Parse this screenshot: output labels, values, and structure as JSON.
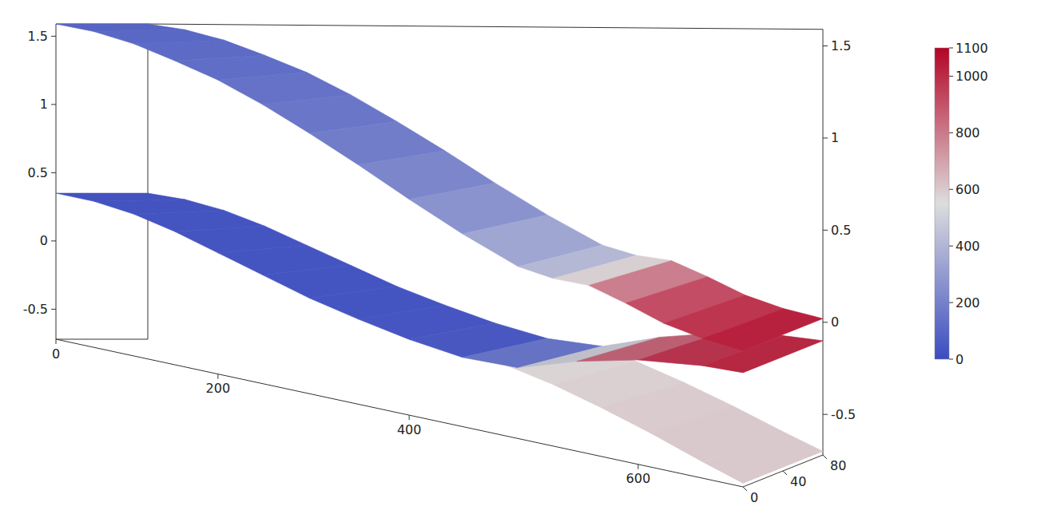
{
  "chart_data": {
    "type": "surface3d",
    "xlim": [
      0,
      680
    ],
    "xticks": [
      0,
      200,
      400,
      600
    ],
    "ylim": [
      -0.72,
      1.59
    ],
    "yticks": [
      -0.5,
      0,
      0.5,
      1,
      1.5
    ],
    "zlim": [
      0,
      80
    ],
    "zticks": [
      0,
      40,
      80
    ],
    "colorbar": {
      "range": [
        0,
        1100
      ],
      "ticks": [
        0,
        200,
        400,
        600,
        800,
        1000,
        1100
      ],
      "colors": [
        "#3b4cc0",
        "#dddddd",
        "#b40426"
      ]
    },
    "series": [
      {
        "x": [
          490,
          530,
          570,
          610,
          650,
          680
        ],
        "values": [
          -0.3,
          -0.36,
          -0.44,
          -0.53,
          -0.63,
          -0.7
        ],
        "z": [
          0,
          80
        ],
        "color_values": [
          560,
          580,
          590,
          600,
          600,
          600
        ]
      },
      {
        "x": [
          0,
          50,
          100,
          150,
          200,
          250,
          300,
          350,
          400,
          450,
          500,
          550,
          600,
          650,
          680
        ],
        "values": [
          0.35,
          0.33,
          0.28,
          0.2,
          0.1,
          0,
          -0.1,
          -0.18,
          -0.25,
          -0.3,
          -0.3,
          -0.2,
          -0.13,
          -0.1,
          -0.1
        ],
        "z": [
          0,
          80
        ],
        "color_values": [
          30,
          30,
          30,
          30,
          30,
          30,
          30,
          35,
          40,
          60,
          250,
          750,
          950,
          1000,
          1020
        ]
      },
      {
        "x": [
          0,
          50,
          100,
          150,
          200,
          250,
          300,
          350,
          400,
          450,
          500,
          530,
          560,
          590,
          620,
          650,
          680
        ],
        "values": [
          1.59,
          1.55,
          1.48,
          1.38,
          1.27,
          1.13,
          0.97,
          0.8,
          0.62,
          0.45,
          0.3,
          0.26,
          0.25,
          0.18,
          0.1,
          0.05,
          0.02
        ],
        "z": [
          0,
          80
        ],
        "color_values": [
          90,
          100,
          110,
          120,
          135,
          150,
          170,
          200,
          240,
          300,
          380,
          450,
          700,
          880,
          950,
          1000,
          1050
        ]
      }
    ]
  }
}
